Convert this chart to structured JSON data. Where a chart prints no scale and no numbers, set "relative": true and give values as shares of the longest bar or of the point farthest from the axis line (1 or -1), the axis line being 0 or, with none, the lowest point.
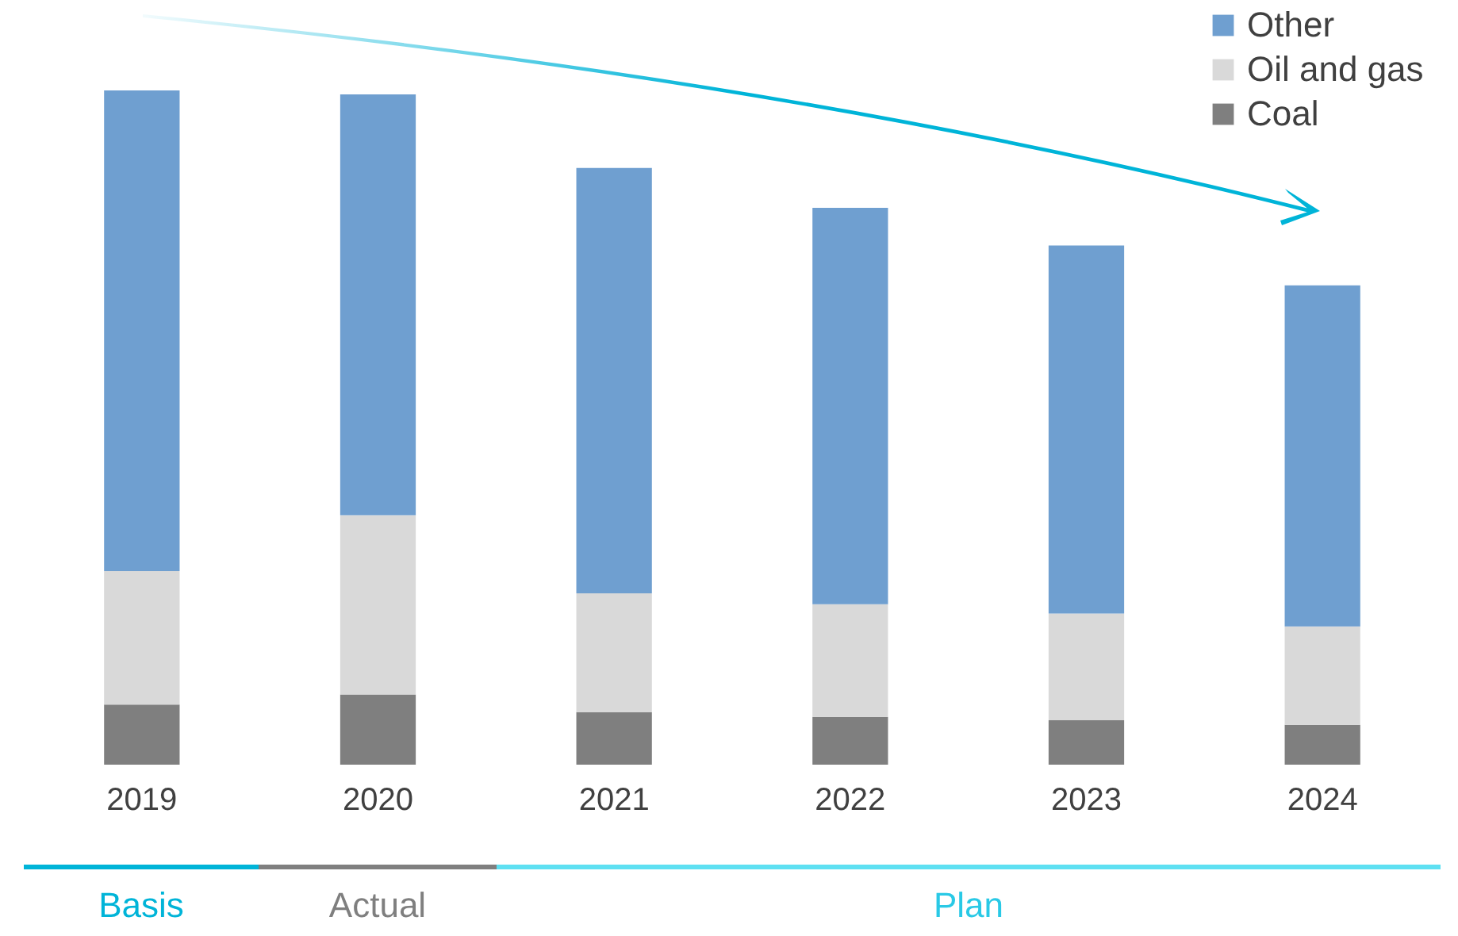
{
  "chart_data": {
    "type": "bar",
    "stacked": true,
    "relative": true,
    "legend": "top right",
    "categories": [
      "2019",
      "2020",
      "2021",
      "2022",
      "2023",
      "2024"
    ],
    "series": [
      {
        "name": "Coal",
        "color": "#7f7f7f",
        "values": [
          0.089,
          0.104,
          0.078,
          0.071,
          0.066,
          0.059
        ]
      },
      {
        "name": "Oil and gas",
        "color": "#d9d9d9",
        "values": [
          0.198,
          0.266,
          0.176,
          0.167,
          0.158,
          0.146
        ]
      },
      {
        "name": "Other",
        "color": "#6f9fd0",
        "values": [
          0.713,
          0.624,
          0.631,
          0.588,
          0.546,
          0.506
        ]
      }
    ],
    "annotations": [
      "Basis",
      "Actual",
      "Plan"
    ]
  }
}
